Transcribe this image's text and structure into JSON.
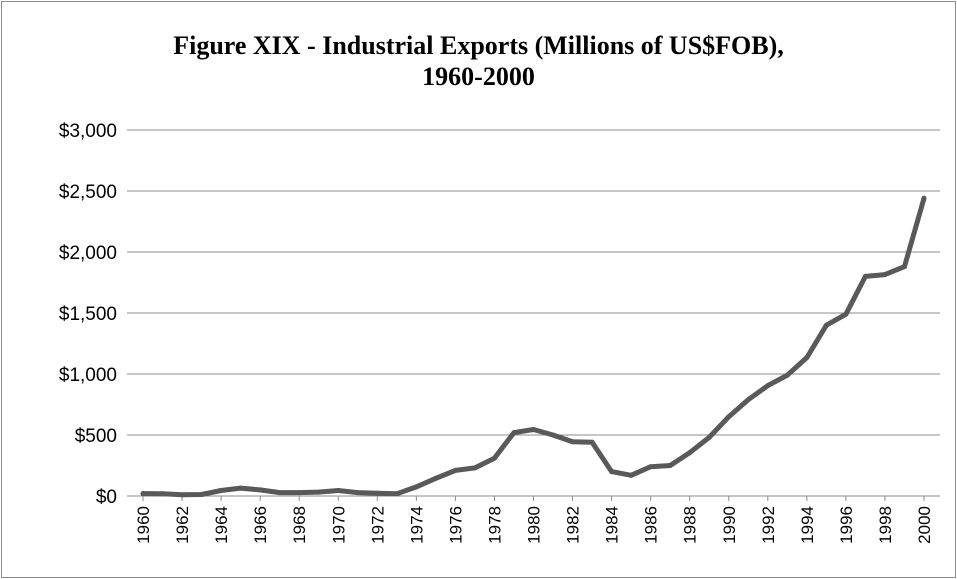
{
  "chart_data": {
    "type": "line",
    "title_line1": "Figure XIX - Industrial Exports (Millions of US$FOB),",
    "title_line2": "1960-2000",
    "xlabel": "",
    "ylabel": "",
    "ylim": [
      0,
      3000
    ],
    "y_ticks": [
      "$0",
      "$500",
      "$1,000",
      "$1,500",
      "$2,000",
      "$2,500",
      "$3,000"
    ],
    "y_tick_values": [
      0,
      500,
      1000,
      1500,
      2000,
      2500,
      3000
    ],
    "x_tick_labels": [
      "1960",
      "1962",
      "1964",
      "1966",
      "1968",
      "1970",
      "1972",
      "1974",
      "1976",
      "1978",
      "1980",
      "1982",
      "1984",
      "1986",
      "1988",
      "1990",
      "1992",
      "1994",
      "1996",
      "1998",
      "2000"
    ],
    "grid": true,
    "line_color": "#595959",
    "x": [
      1960,
      1961,
      1962,
      1963,
      1964,
      1965,
      1966,
      1967,
      1968,
      1969,
      1970,
      1971,
      1972,
      1973,
      1974,
      1975,
      1976,
      1977,
      1978,
      1979,
      1980,
      1981,
      1982,
      1983,
      1984,
      1985,
      1986,
      1987,
      1988,
      1989,
      1990,
      1991,
      1992,
      1993,
      1994,
      1995,
      1996,
      1997,
      1998,
      1999,
      2000
    ],
    "series": [
      {
        "values": [
          20,
          18,
          10,
          12,
          45,
          65,
          50,
          28,
          28,
          32,
          45,
          28,
          22,
          18,
          75,
          145,
          210,
          230,
          310,
          520,
          545,
          500,
          445,
          440,
          200,
          170,
          240,
          250,
          355,
          480,
          650,
          790,
          905,
          990,
          1135,
          1400,
          1490,
          1800,
          1815,
          1880,
          2440
        ]
      }
    ]
  }
}
